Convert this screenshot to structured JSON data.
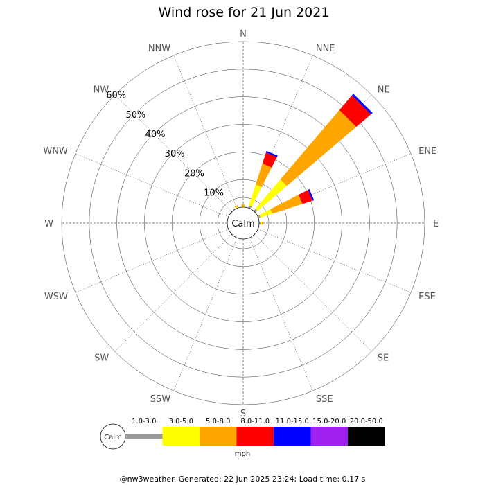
{
  "chart_data": {
    "type": "wind-rose",
    "title": "Wind rose for 21 Jun 2021",
    "directions": [
      "N",
      "NNE",
      "NE",
      "ENE",
      "E",
      "ESE",
      "SE",
      "SSE",
      "S",
      "SSW",
      "SW",
      "WSW",
      "W",
      "WNW",
      "NW",
      "NNW"
    ],
    "radial_ticks": [
      "10%",
      "20%",
      "30%",
      "40%",
      "50%",
      "60%"
    ],
    "radial_max": 60,
    "calm_label": "Calm",
    "speed_bins": [
      {
        "label": "1.0-3.0",
        "color": "#999999"
      },
      {
        "label": "3.0-5.0",
        "color": "#ffff00"
      },
      {
        "label": "5.0-8.0",
        "color": "#ffa500"
      },
      {
        "label": "8.0-11.0",
        "color": "#ff0000"
      },
      {
        "label": "11.0-15.0",
        "color": "#0000ff"
      },
      {
        "label": "15.0-20.0",
        "color": "#a020f0"
      },
      {
        "label": "20.0-50.0",
        "color": "#000000"
      }
    ],
    "units": "mph",
    "series": [
      {
        "direction": "N",
        "values": [
          0.0,
          0.4,
          0.6,
          0.0,
          0.0,
          0.0,
          0.0
        ]
      },
      {
        "direction": "NNE",
        "values": [
          0.9,
          8.0,
          8.0,
          4.2,
          0.6,
          0.0,
          0.0
        ]
      },
      {
        "direction": "NE",
        "values": [
          1.0,
          14.0,
          33.0,
          7.0,
          0.8,
          0.0,
          0.0
        ]
      },
      {
        "direction": "ENE",
        "values": [
          0.8,
          4.5,
          11.5,
          3.8,
          0.6,
          0.0,
          0.0
        ]
      },
      {
        "direction": "E",
        "values": [
          0.5,
          0.5,
          0.5,
          0.0,
          0.0,
          0.0,
          0.0
        ]
      },
      {
        "direction": "ESE",
        "values": [
          0.0,
          0.0,
          0.0,
          0.0,
          0.0,
          0.0,
          0.0
        ]
      },
      {
        "direction": "SE",
        "values": [
          0.0,
          0.0,
          0.0,
          0.0,
          0.0,
          0.0,
          0.0
        ]
      },
      {
        "direction": "SSE",
        "values": [
          0.0,
          0.0,
          0.0,
          0.0,
          0.0,
          0.0,
          0.0
        ]
      },
      {
        "direction": "S",
        "values": [
          0.0,
          0.0,
          0.0,
          0.0,
          0.0,
          0.0,
          0.0
        ]
      },
      {
        "direction": "SSW",
        "values": [
          0.0,
          0.0,
          0.0,
          0.0,
          0.0,
          0.0,
          0.0
        ]
      },
      {
        "direction": "SW",
        "values": [
          0.0,
          0.0,
          0.0,
          0.0,
          0.0,
          0.0,
          0.0
        ]
      },
      {
        "direction": "WSW",
        "values": [
          0.0,
          0.0,
          0.0,
          0.0,
          0.0,
          0.0,
          0.0
        ]
      },
      {
        "direction": "W",
        "values": [
          0.0,
          0.0,
          0.0,
          0.0,
          0.0,
          0.0,
          0.0
        ]
      },
      {
        "direction": "WNW",
        "values": [
          0.0,
          0.0,
          0.0,
          0.0,
          0.0,
          0.0,
          0.0
        ]
      },
      {
        "direction": "NW",
        "values": [
          0.0,
          0.0,
          0.0,
          0.0,
          0.0,
          0.0,
          0.0
        ]
      },
      {
        "direction": "NNW",
        "values": [
          0.0,
          0.5,
          0.5,
          0.0,
          0.0,
          0.0,
          0.0
        ]
      }
    ]
  },
  "footer": "@nw3weather. Generated: 22 Jun 2025 23:24; Load time: 0.17 s"
}
